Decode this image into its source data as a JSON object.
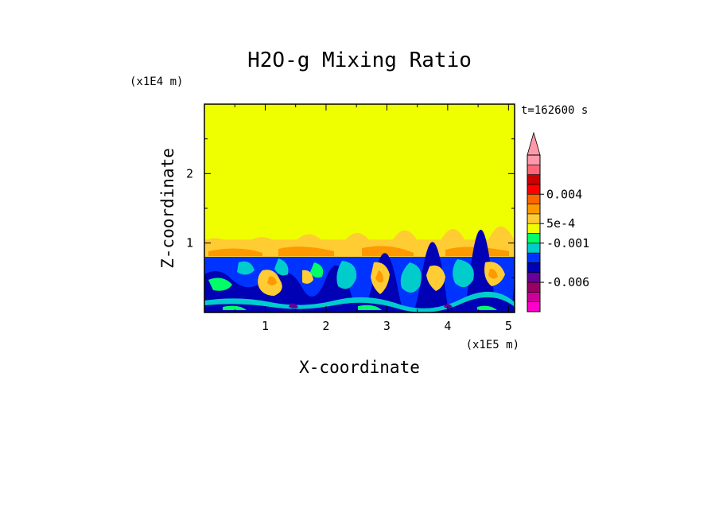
{
  "chart_data": {
    "type": "heatmap",
    "title": "H2O-g Mixing Ratio",
    "xlabel": "X-coordinate",
    "ylabel": "Z-coordinate",
    "x_multiplier": "(x1E5 m)",
    "y_multiplier": "(x1E4 m)",
    "time_label": "t=162600 s",
    "xlim": [
      0,
      5.1
    ],
    "ylim": [
      0,
      3
    ],
    "x_ticks": [
      "1",
      "2",
      "3",
      "4",
      "5"
    ],
    "y_ticks": [
      "1",
      "2"
    ],
    "layers": {
      "upper_uniform_value_color": "#f0ff00",
      "transition_band_color": "#ffcc33",
      "boundary_layer_top": 0.8,
      "transition_band_top": 1.05
    },
    "colorbar": {
      "levels": [
        {
          "color": "#ff00cc"
        },
        {
          "color": "#cc0099"
        },
        {
          "color": "#990066"
        },
        {
          "color": "#660099"
        },
        {
          "color": "#0000b4"
        },
        {
          "color": "#0033ff"
        },
        {
          "color": "#00cccc"
        },
        {
          "color": "#00ff66"
        },
        {
          "color": "#f0ff00"
        },
        {
          "color": "#ffcc33"
        },
        {
          "color": "#ff9900"
        },
        {
          "color": "#ff6600"
        },
        {
          "color": "#ff0000"
        },
        {
          "color": "#cc0000"
        },
        {
          "color": "#ff6677"
        },
        {
          "color": "#ff99aa"
        }
      ],
      "labels": [
        "0.004",
        "5e-4",
        "-0.001",
        "-0.006"
      ]
    }
  }
}
